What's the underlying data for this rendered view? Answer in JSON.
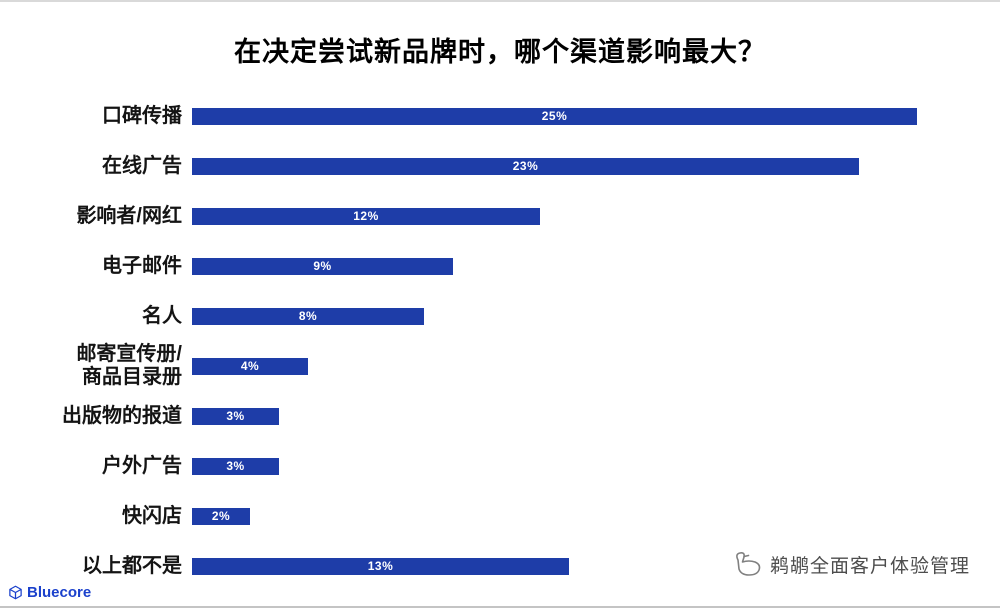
{
  "chart_data": {
    "type": "bar",
    "orientation": "horizontal",
    "title": "在决定尝试新品牌时，哪个渠道影响最大？",
    "categories": [
      "口碑传播",
      "在线广告",
      "影响者/网红",
      "电子邮件",
      "名人",
      "邮寄宣传册/\n商品目录册",
      "出版物的报道",
      "户外广告",
      "快闪店",
      "以上都不是"
    ],
    "values": [
      25,
      23,
      12,
      9,
      8,
      4,
      3,
      3,
      2,
      13
    ],
    "value_labels": [
      "25%",
      "23%",
      "12%",
      "9%",
      "8%",
      "4%",
      "3%",
      "3%",
      "2%",
      "13%"
    ],
    "bar_color": "#1e3da8",
    "value_label_color": "#ffffff",
    "xlim": [
      0,
      27.5
    ],
    "grid": false,
    "legend": "none"
  },
  "footer": {
    "brand": "Bluecore",
    "watermark": "鹈鹕全面客户体验管理"
  }
}
